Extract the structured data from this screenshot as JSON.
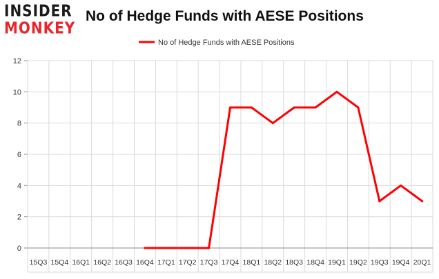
{
  "logo": {
    "line1": "INSIDER",
    "line2": "MONKEY"
  },
  "colors": {
    "series": "#ff0000",
    "grid": "#d9d9d9",
    "axis": "#888888",
    "logo_accent": "#e8262b"
  },
  "chart_data": {
    "type": "line",
    "title": "No of Hedge Funds with AESE Positions",
    "categories": [
      "15Q3",
      "15Q4",
      "16Q1",
      "16Q2",
      "16Q3",
      "16Q4",
      "17Q1",
      "17Q2",
      "17Q3",
      "17Q4",
      "18Q1",
      "18Q2",
      "18Q3",
      "18Q4",
      "19Q1",
      "19Q2",
      "19Q3",
      "19Q4",
      "20Q1"
    ],
    "series": [
      {
        "name": "No of Hedge Funds with AESE Positions",
        "values": [
          null,
          null,
          null,
          null,
          null,
          0,
          0,
          0,
          0,
          9,
          9,
          8,
          9,
          9,
          10,
          9,
          3,
          4,
          3
        ]
      }
    ],
    "ylim": [
      0,
      12
    ],
    "yticks": [
      0,
      2,
      4,
      6,
      8,
      10,
      12
    ],
    "grid": true,
    "legend": "top-center"
  }
}
